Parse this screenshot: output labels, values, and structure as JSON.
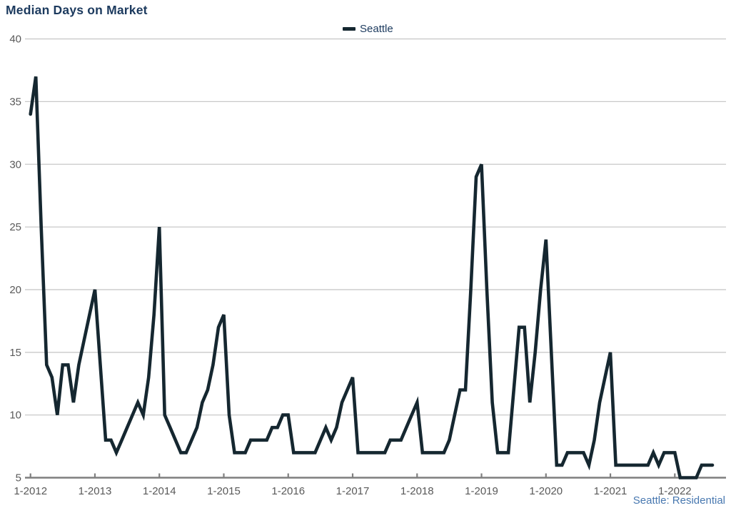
{
  "title": "Median Days on Market",
  "legend": {
    "items": [
      {
        "label": "Seattle",
        "swatch_color": "#152730"
      }
    ],
    "position": "top-center"
  },
  "footer_note": "Seattle: Residential",
  "colors": {
    "title_text": "#1c3a5e",
    "legend_text": "#1c3a5e",
    "footer_text": "#4878b0",
    "series_line": "#152730",
    "gridline": "#c9c9c9",
    "axis_line": "#7f7f7f",
    "tick_label": "#595959"
  },
  "chart_data": {
    "type": "line",
    "title": "Median Days on Market",
    "xlabel": "",
    "ylabel": "",
    "x_start": "2012-01",
    "frequency": "monthly",
    "x_tick_labels": [
      "1-2012",
      "1-2013",
      "1-2014",
      "1-2015",
      "1-2016",
      "1-2017",
      "1-2018",
      "1-2019",
      "1-2020",
      "1-2021",
      "1-2022"
    ],
    "y_ticks": [
      5,
      10,
      15,
      20,
      25,
      30,
      35,
      40
    ],
    "ylim": [
      5,
      40
    ],
    "grid": "horizontal",
    "legend_position": "top-center",
    "series": [
      {
        "name": "Seattle",
        "values": [
          34,
          37,
          25,
          14,
          13,
          10,
          14,
          14,
          11,
          14,
          16,
          18,
          20,
          14,
          8,
          8,
          7,
          8,
          9,
          10,
          11,
          10,
          13,
          18,
          25,
          10,
          9,
          8,
          7,
          7,
          8,
          9,
          11,
          12,
          14,
          17,
          18,
          10,
          7,
          7,
          7,
          8,
          8,
          8,
          8,
          9,
          9,
          10,
          10,
          7,
          7,
          7,
          7,
          7,
          8,
          9,
          8,
          9,
          11,
          12,
          13,
          7,
          7,
          7,
          7,
          7,
          7,
          8,
          8,
          8,
          9,
          10,
          11,
          7,
          7,
          7,
          7,
          7,
          8,
          10,
          12,
          12,
          20,
          29,
          30,
          20,
          11,
          7,
          7,
          7,
          12,
          17,
          17,
          11,
          15,
          20,
          24,
          15,
          6,
          6,
          7,
          7,
          7,
          7,
          6,
          8,
          11,
          13,
          15,
          6,
          6,
          6,
          6,
          6,
          6,
          6,
          7,
          6,
          7,
          7,
          7,
          5,
          5,
          5,
          5,
          6,
          6,
          6
        ]
      }
    ]
  }
}
